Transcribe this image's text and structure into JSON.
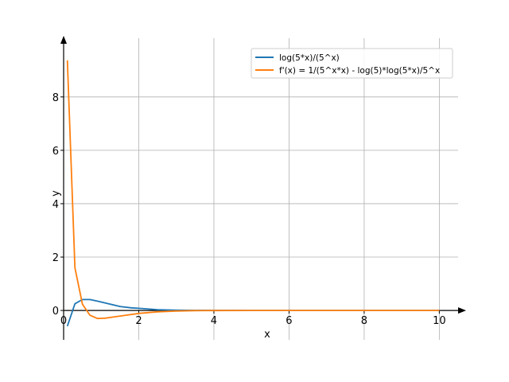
{
  "chart_data": {
    "type": "line",
    "title": "",
    "xlabel": "x",
    "ylabel": "y",
    "xlim": [
      0,
      10.5
    ],
    "ylim": [
      -1.1,
      10.2
    ],
    "x_ticks": [
      0,
      2,
      4,
      6,
      8,
      10
    ],
    "y_ticks": [
      0,
      2,
      4,
      6,
      8
    ],
    "grid": true,
    "legend_position": "top-right",
    "series": [
      {
        "name": "log(5*x)/(5^x)",
        "color": "#1f77b4",
        "x": [
          0.1,
          0.3,
          0.5,
          0.7,
          0.9,
          1.2,
          1.5,
          1.8,
          2.0,
          2.5,
          3.0,
          3.5,
          4.0,
          5.0,
          6.0,
          7.0,
          8.0,
          9.0,
          10.0
        ],
        "y": [
          -0.59,
          0.25,
          0.41,
          0.41,
          0.35,
          0.25,
          0.15,
          0.1,
          0.08,
          0.03,
          0.01,
          0.004,
          0.002,
          0.0,
          0.0,
          0.0,
          0.0,
          0.0,
          0.0
        ]
      },
      {
        "name": "f'(x) = 1/(5^x*x) - log(5)*log(5*x)/5^x",
        "color": "#ff7f0e",
        "x": [
          0.1,
          0.3,
          0.5,
          0.7,
          0.9,
          1.1,
          1.3,
          1.6,
          2.0,
          2.5,
          3.0,
          3.5,
          4.0,
          5.0,
          6.0,
          7.0,
          8.0,
          9.0,
          10.0
        ],
        "y": [
          9.37,
          1.6,
          0.24,
          -0.18,
          -0.3,
          -0.29,
          -0.25,
          -0.19,
          -0.11,
          -0.05,
          -0.02,
          -0.007,
          -0.003,
          0.0,
          0.0,
          0.0,
          0.0,
          0.0,
          0.0
        ]
      }
    ]
  }
}
